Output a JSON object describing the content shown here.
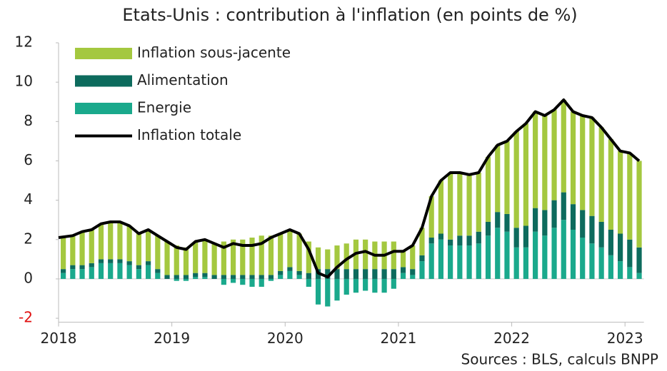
{
  "chart_data": {
    "type": "bar",
    "stacked": true,
    "title": "Etats-Unis : contribution à l'inflation (en points de %)",
    "source": "Sources : BLS, calculs BNPP",
    "categories": [
      "2018",
      null,
      null,
      null,
      null,
      null,
      null,
      null,
      null,
      null,
      null,
      null,
      "2019",
      null,
      null,
      null,
      null,
      null,
      null,
      null,
      null,
      null,
      null,
      null,
      "2020",
      null,
      null,
      null,
      null,
      null,
      null,
      null,
      null,
      null,
      null,
      null,
      "2021",
      null,
      null,
      null,
      null,
      null,
      null,
      null,
      null,
      null,
      null,
      null,
      "2022",
      null,
      null,
      null,
      null,
      null,
      null,
      null,
      null,
      null,
      null,
      null,
      "2023",
      null
    ],
    "series": [
      {
        "name": "Inflation sous-jacente",
        "type": "bar",
        "color": "#a4c83f",
        "values": [
          1.6,
          1.5,
          1.7,
          1.7,
          1.8,
          1.9,
          1.9,
          1.8,
          1.6,
          1.6,
          1.7,
          1.7,
          1.5,
          1.4,
          1.6,
          1.7,
          1.6,
          1.7,
          1.8,
          1.8,
          1.9,
          2.0,
          2.0,
          1.9,
          1.9,
          1.9,
          1.6,
          1.1,
          1.0,
          1.2,
          1.3,
          1.5,
          1.5,
          1.4,
          1.4,
          1.4,
          0.8,
          1.2,
          1.4,
          2.1,
          2.7,
          3.4,
          3.2,
          3.1,
          3.0,
          3.3,
          3.4,
          3.7,
          4.9,
          5.2,
          4.9,
          4.8,
          4.6,
          4.7,
          4.7,
          4.8,
          5.0,
          4.8,
          4.6,
          4.2,
          4.4,
          4.4
        ]
      },
      {
        "name": "Alimentation",
        "type": "bar",
        "color": "#0d6b5d",
        "values": [
          0.2,
          0.2,
          0.2,
          0.2,
          0.2,
          0.2,
          0.2,
          0.2,
          0.2,
          0.2,
          0.2,
          0.2,
          0.2,
          0.2,
          0.2,
          0.2,
          0.2,
          0.2,
          0.2,
          0.2,
          0.2,
          0.2,
          0.2,
          0.2,
          0.2,
          0.2,
          0.3,
          0.5,
          0.5,
          0.5,
          0.5,
          0.5,
          0.5,
          0.5,
          0.5,
          0.5,
          0.3,
          0.3,
          0.3,
          0.3,
          0.3,
          0.3,
          0.5,
          0.5,
          0.6,
          0.7,
          0.8,
          0.9,
          1.0,
          1.1,
          1.2,
          1.3,
          1.4,
          1.4,
          1.3,
          1.4,
          1.4,
          1.3,
          1.3,
          1.4,
          1.4,
          1.3
        ]
      },
      {
        "name": "Energie",
        "type": "bar",
        "color": "#1aa98c",
        "values": [
          0.3,
          0.5,
          0.5,
          0.6,
          0.8,
          0.8,
          0.8,
          0.7,
          0.5,
          0.7,
          0.3,
          0.0,
          -0.1,
          -0.1,
          0.1,
          0.1,
          0.0,
          -0.3,
          -0.2,
          -0.3,
          -0.4,
          -0.4,
          -0.1,
          0.2,
          0.4,
          0.2,
          -0.4,
          -1.3,
          -1.4,
          -1.1,
          -0.8,
          -0.7,
          -0.6,
          -0.7,
          -0.7,
          -0.5,
          0.3,
          0.2,
          0.9,
          1.8,
          2.0,
          1.7,
          1.7,
          1.7,
          1.8,
          2.2,
          2.6,
          2.4,
          1.6,
          1.6,
          2.4,
          2.2,
          2.6,
          3.0,
          2.5,
          2.1,
          1.8,
          1.6,
          1.2,
          0.9,
          0.6,
          0.3
        ]
      },
      {
        "name": "Inflation totale",
        "type": "line",
        "color": "#000000",
        "values": [
          2.1,
          2.2,
          2.4,
          2.5,
          2.8,
          2.9,
          2.9,
          2.7,
          2.3,
          2.5,
          2.2,
          1.9,
          1.6,
          1.5,
          1.9,
          2.0,
          1.8,
          1.6,
          1.8,
          1.7,
          1.7,
          1.8,
          2.1,
          2.3,
          2.5,
          2.3,
          1.5,
          0.3,
          0.1,
          0.6,
          1.0,
          1.3,
          1.4,
          1.2,
          1.2,
          1.4,
          1.4,
          1.7,
          2.6,
          4.2,
          5.0,
          5.4,
          5.4,
          5.3,
          5.4,
          6.2,
          6.8,
          7.0,
          7.5,
          7.9,
          8.5,
          8.3,
          8.6,
          9.1,
          8.5,
          8.3,
          8.2,
          7.7,
          7.1,
          6.5,
          6.4,
          6.0
        ]
      }
    ],
    "stack_order": [
      2,
      1,
      0
    ],
    "ylim": [
      -2.2,
      12
    ],
    "yticks": [
      -2,
      0,
      2,
      4,
      6,
      8,
      10,
      12
    ],
    "negative_tick_color": "#e01010",
    "legend": "upper left",
    "grid": false
  }
}
